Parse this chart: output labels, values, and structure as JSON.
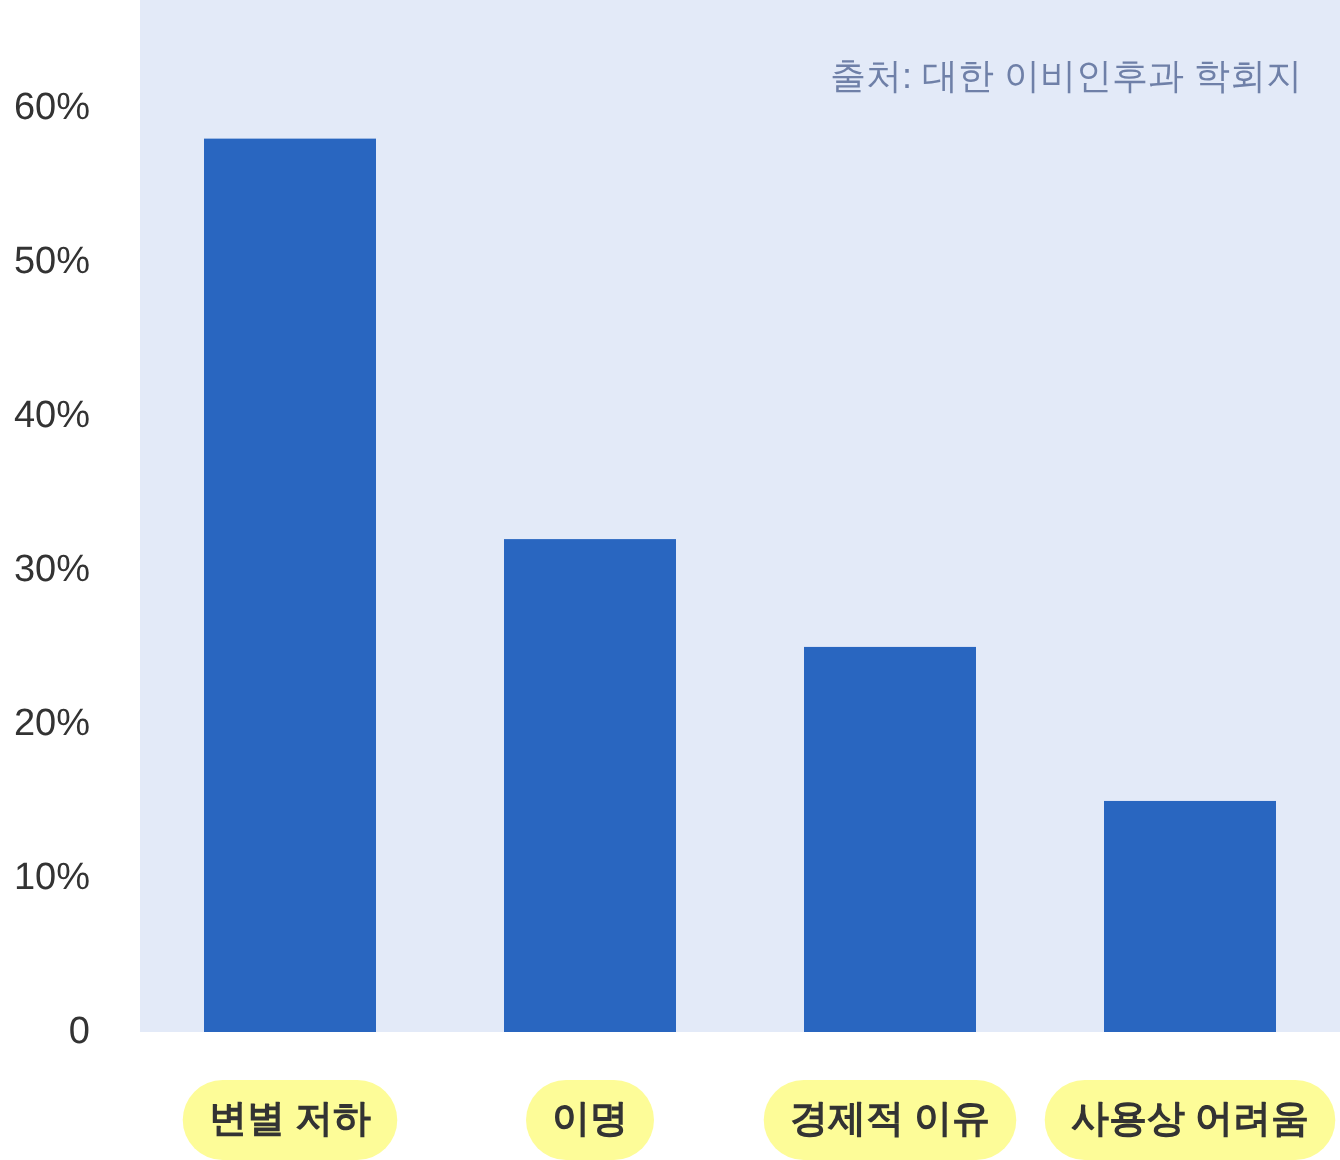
{
  "chart_data": {
    "type": "bar",
    "categories": [
      "변별 저하",
      "이명",
      "경제적 이유",
      "사용상 어려움"
    ],
    "values": [
      58,
      32,
      25,
      15
    ],
    "color": "#2966c0",
    "ylim": [
      0,
      67
    ],
    "yticks": [
      0,
      {
        "value": 10,
        "label": "10%"
      },
      {
        "value": 20,
        "label": "20%"
      },
      {
        "value": 30,
        "label": "30%"
      },
      {
        "value": 40,
        "label": "40%"
      },
      {
        "value": 50,
        "label": "50%"
      },
      {
        "value": 60,
        "label": "60%"
      }
    ],
    "annotations": [
      "출처: 대한 이비인후과 학회지"
    ]
  }
}
